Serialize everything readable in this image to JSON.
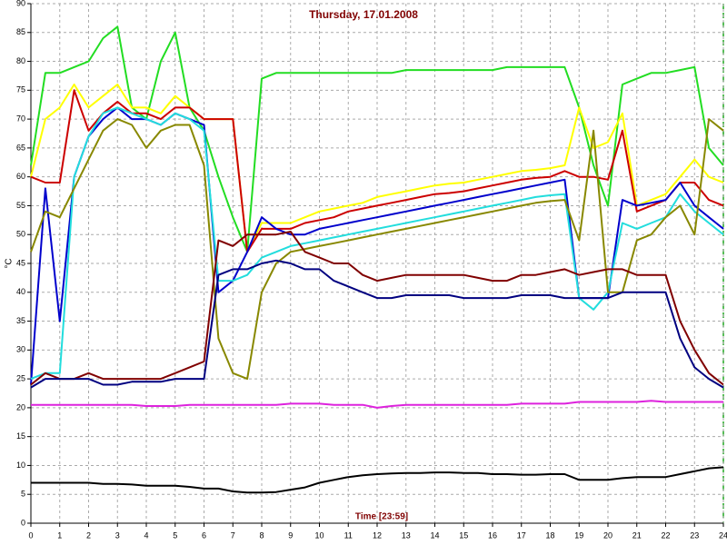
{
  "chart_data": {
    "type": "line",
    "title": "Thursday, 17.01.2008",
    "x_label": "Time [23:59]",
    "y_label": "°C",
    "x": [
      0,
      0.5,
      1,
      1.5,
      2,
      2.5,
      3,
      3.5,
      4,
      4.5,
      5,
      5.5,
      6,
      6.5,
      7,
      7.5,
      8,
      8.5,
      9,
      9.5,
      10,
      10.5,
      11,
      11.5,
      12,
      12.5,
      13,
      13.5,
      14,
      14.5,
      15,
      15.5,
      16,
      16.5,
      17,
      17.5,
      18,
      18.5,
      19,
      19.5,
      20,
      20.5,
      21,
      21.5,
      22,
      22.5,
      23,
      23.5,
      24
    ],
    "xlim": [
      0,
      24
    ],
    "xticks": [
      0,
      1,
      2,
      3,
      4,
      5,
      6,
      7,
      8,
      9,
      10,
      11,
      12,
      13,
      14,
      15,
      16,
      17,
      18,
      19,
      20,
      21,
      22,
      23,
      24
    ],
    "ylim": [
      0,
      90
    ],
    "yticks": [
      0,
      5,
      10,
      15,
      20,
      25,
      30,
      35,
      40,
      45,
      50,
      55,
      60,
      65,
      70,
      75,
      80,
      85,
      90
    ],
    "grid": true,
    "series": [
      {
        "color": "#22dd22",
        "values": [
          62,
          78,
          78,
          79,
          80,
          84,
          86,
          72,
          70,
          80,
          85,
          72,
          68,
          60,
          53,
          47,
          77,
          78,
          78,
          78,
          78,
          78,
          78,
          78,
          78,
          78,
          78.5,
          78.5,
          78.5,
          78.5,
          78.5,
          78.5,
          78.5,
          79,
          79,
          79,
          79,
          79,
          72,
          62,
          55,
          76,
          77,
          78,
          78,
          78.5,
          79,
          65,
          62
        ]
      },
      {
        "color": "#ffff00",
        "values": [
          60,
          70,
          72,
          76,
          72,
          74,
          76,
          72,
          72,
          71,
          74,
          72,
          70,
          70,
          70,
          47,
          52,
          52,
          52,
          53,
          54,
          54.5,
          55,
          55.5,
          56.5,
          57,
          57.5,
          58,
          58.5,
          58.8,
          59,
          59.5,
          60,
          60.5,
          61,
          61.2,
          61.5,
          62,
          72,
          65,
          66,
          71,
          55,
          56,
          57,
          60,
          63,
          60,
          59
        ]
      },
      {
        "color": "#cc0000",
        "values": [
          60,
          59,
          59,
          75,
          68,
          71,
          73,
          71,
          71,
          70,
          72,
          72,
          70,
          70,
          70,
          47,
          51,
          51,
          51,
          52,
          52.5,
          53,
          54,
          54.5,
          55,
          55.5,
          56,
          56.5,
          57,
          57.2,
          57.5,
          58,
          58.5,
          59,
          59.5,
          59.8,
          60,
          61,
          60,
          60,
          59.5,
          68,
          54,
          55,
          56,
          59,
          59,
          56,
          55
        ]
      },
      {
        "color": "#0000cc",
        "values": [
          24,
          58,
          35,
          60,
          67,
          70,
          72,
          70,
          70,
          69,
          71,
          70,
          69,
          40,
          42,
          47,
          53,
          51,
          50,
          50,
          51,
          51.5,
          52,
          52.5,
          53,
          53.5,
          54,
          54.5,
          55,
          55.5,
          56,
          56.5,
          57,
          57.5,
          58,
          58.5,
          59,
          59.5,
          39,
          39,
          39,
          56,
          55,
          55.5,
          56,
          59,
          55,
          53,
          51
        ]
      },
      {
        "color": "#22dddd",
        "values": [
          25,
          26,
          26,
          60,
          67,
          71,
          72,
          71,
          70,
          69,
          71,
          70,
          68,
          42,
          42,
          43,
          46,
          47,
          48,
          48.5,
          49,
          49.5,
          50,
          50.5,
          51,
          51.5,
          52,
          52.5,
          53,
          53.5,
          54,
          54.5,
          55,
          55.5,
          56,
          56.5,
          56.8,
          57,
          39,
          37,
          40,
          52,
          51,
          52,
          53,
          57,
          54,
          52,
          50
        ]
      },
      {
        "color": "#888800",
        "values": [
          47,
          54,
          53,
          58,
          63,
          68,
          70,
          69,
          65,
          68,
          69,
          69,
          62,
          32,
          26,
          25,
          40,
          45,
          47,
          47.5,
          48,
          48.5,
          49,
          49.5,
          50,
          50.5,
          51,
          51.5,
          52,
          52.5,
          53,
          53.5,
          54,
          54.5,
          55,
          55.5,
          55.8,
          56,
          49,
          68,
          40,
          40,
          49,
          50,
          53,
          55,
          50,
          70,
          68
        ]
      },
      {
        "color": "#800000",
        "values": [
          24,
          26,
          25,
          25,
          26,
          25,
          25,
          25,
          25,
          25,
          26,
          27,
          28,
          49,
          48,
          50,
          50,
          50,
          50.5,
          47,
          46,
          45,
          45,
          43,
          42,
          42.5,
          43,
          43,
          43,
          43,
          43,
          42.5,
          42,
          42,
          43,
          43,
          43.5,
          44,
          43,
          43.5,
          44,
          44,
          43,
          43,
          43,
          35,
          30,
          26,
          24
        ]
      },
      {
        "color": "#000080",
        "values": [
          23.5,
          25,
          25,
          25,
          25,
          24,
          24,
          24.5,
          24.5,
          24.5,
          25,
          25,
          25,
          43,
          44,
          44,
          45,
          45.5,
          45,
          44,
          44,
          42,
          41,
          40,
          39,
          39,
          39.5,
          39.5,
          39.5,
          39.5,
          39,
          39,
          39,
          39,
          39.5,
          39.5,
          39.5,
          39,
          39,
          39,
          39,
          40,
          40,
          40,
          40,
          32,
          27,
          25,
          23.5
        ]
      },
      {
        "color": "#dd22dd",
        "values": [
          20.5,
          20.5,
          20.5,
          20.5,
          20.5,
          20.5,
          20.5,
          20.5,
          20.3,
          20.3,
          20.3,
          20.5,
          20.5,
          20.5,
          20.5,
          20.5,
          20.5,
          20.5,
          20.7,
          20.7,
          20.7,
          20.5,
          20.5,
          20.5,
          20,
          20.3,
          20.5,
          20.5,
          20.5,
          20.5,
          20.5,
          20.5,
          20.5,
          20.5,
          20.7,
          20.7,
          20.7,
          20.7,
          21,
          21,
          21,
          21,
          21,
          21.2,
          21,
          21,
          21,
          21,
          21
        ]
      },
      {
        "color": "#000000",
        "values": [
          7,
          7,
          7,
          7,
          7,
          6.8,
          6.8,
          6.7,
          6.5,
          6.5,
          6.5,
          6.3,
          6,
          6,
          5.5,
          5.3,
          5.3,
          5.4,
          5.8,
          6.2,
          7,
          7.5,
          8,
          8.3,
          8.5,
          8.6,
          8.7,
          8.7,
          8.8,
          8.8,
          8.7,
          8.7,
          8.5,
          8.5,
          8.4,
          8.4,
          8.5,
          8.5,
          7.5,
          7.5,
          7.5,
          7.8,
          8,
          8,
          8,
          8.5,
          9,
          9.5,
          9.7
        ]
      }
    ]
  }
}
